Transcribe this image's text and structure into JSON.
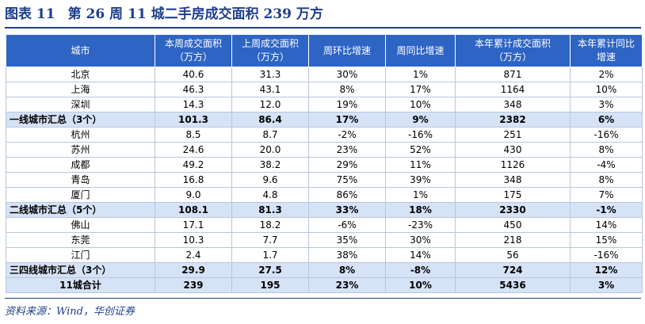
{
  "figure": {
    "label": "图表 11",
    "title": "第 26 周 11 城二手房成交面积 239 万方"
  },
  "table": {
    "headers": [
      "城市",
      "本周成交面积（万方）",
      "上周成交面积（万方）",
      "周环比增速",
      "周同比增速",
      "本年累计成交面积（万方）",
      "本年累计同比增速"
    ],
    "rows": [
      {
        "type": "city",
        "cells": [
          "北京",
          "40.6",
          "31.3",
          "30%",
          "1%",
          "871",
          "2%"
        ]
      },
      {
        "type": "city",
        "cells": [
          "上海",
          "46.3",
          "43.1",
          "8%",
          "17%",
          "1164",
          "10%"
        ]
      },
      {
        "type": "city",
        "cells": [
          "深圳",
          "14.3",
          "12.0",
          "19%",
          "10%",
          "348",
          "3%"
        ]
      },
      {
        "type": "sub",
        "cells": [
          "一线城市汇总（3个）",
          "101.3",
          "86.4",
          "17%",
          "9%",
          "2382",
          "6%"
        ]
      },
      {
        "type": "city",
        "cells": [
          "杭州",
          "8.5",
          "8.7",
          "-2%",
          "-16%",
          "251",
          "-16%"
        ]
      },
      {
        "type": "city",
        "cells": [
          "苏州",
          "24.6",
          "20.0",
          "23%",
          "52%",
          "430",
          "8%"
        ]
      },
      {
        "type": "city",
        "cells": [
          "成都",
          "49.2",
          "38.2",
          "29%",
          "11%",
          "1126",
          "-4%"
        ]
      },
      {
        "type": "city",
        "cells": [
          "青岛",
          "16.8",
          "9.6",
          "75%",
          "39%",
          "348",
          "8%"
        ]
      },
      {
        "type": "city",
        "cells": [
          "厦门",
          "9.0",
          "4.8",
          "86%",
          "1%",
          "175",
          "7%"
        ]
      },
      {
        "type": "sub",
        "cells": [
          "二线城市汇总（5个）",
          "108.1",
          "81.3",
          "33%",
          "18%",
          "2330",
          "-1%"
        ]
      },
      {
        "type": "city",
        "cells": [
          "佛山",
          "17.1",
          "18.2",
          "-6%",
          "-23%",
          "450",
          "14%"
        ]
      },
      {
        "type": "city",
        "cells": [
          "东莞",
          "10.3",
          "7.7",
          "35%",
          "30%",
          "218",
          "15%"
        ]
      },
      {
        "type": "city",
        "cells": [
          "江门",
          "2.4",
          "1.7",
          "38%",
          "14%",
          "56",
          "-16%"
        ]
      },
      {
        "type": "sub",
        "cells": [
          "三四线城市汇总（3个）",
          "29.9",
          "27.5",
          "8%",
          "-8%",
          "724",
          "12%"
        ]
      },
      {
        "type": "total",
        "cells": [
          "11城合计",
          "239",
          "195",
          "23%",
          "10%",
          "5436",
          "3%"
        ]
      }
    ]
  },
  "source": "资料来源：Wind，华创证券",
  "colors": {
    "header_bg": "#2e64c4",
    "subtotal_bg": "#d6e2f6",
    "title_color": "#1f3f8c"
  }
}
